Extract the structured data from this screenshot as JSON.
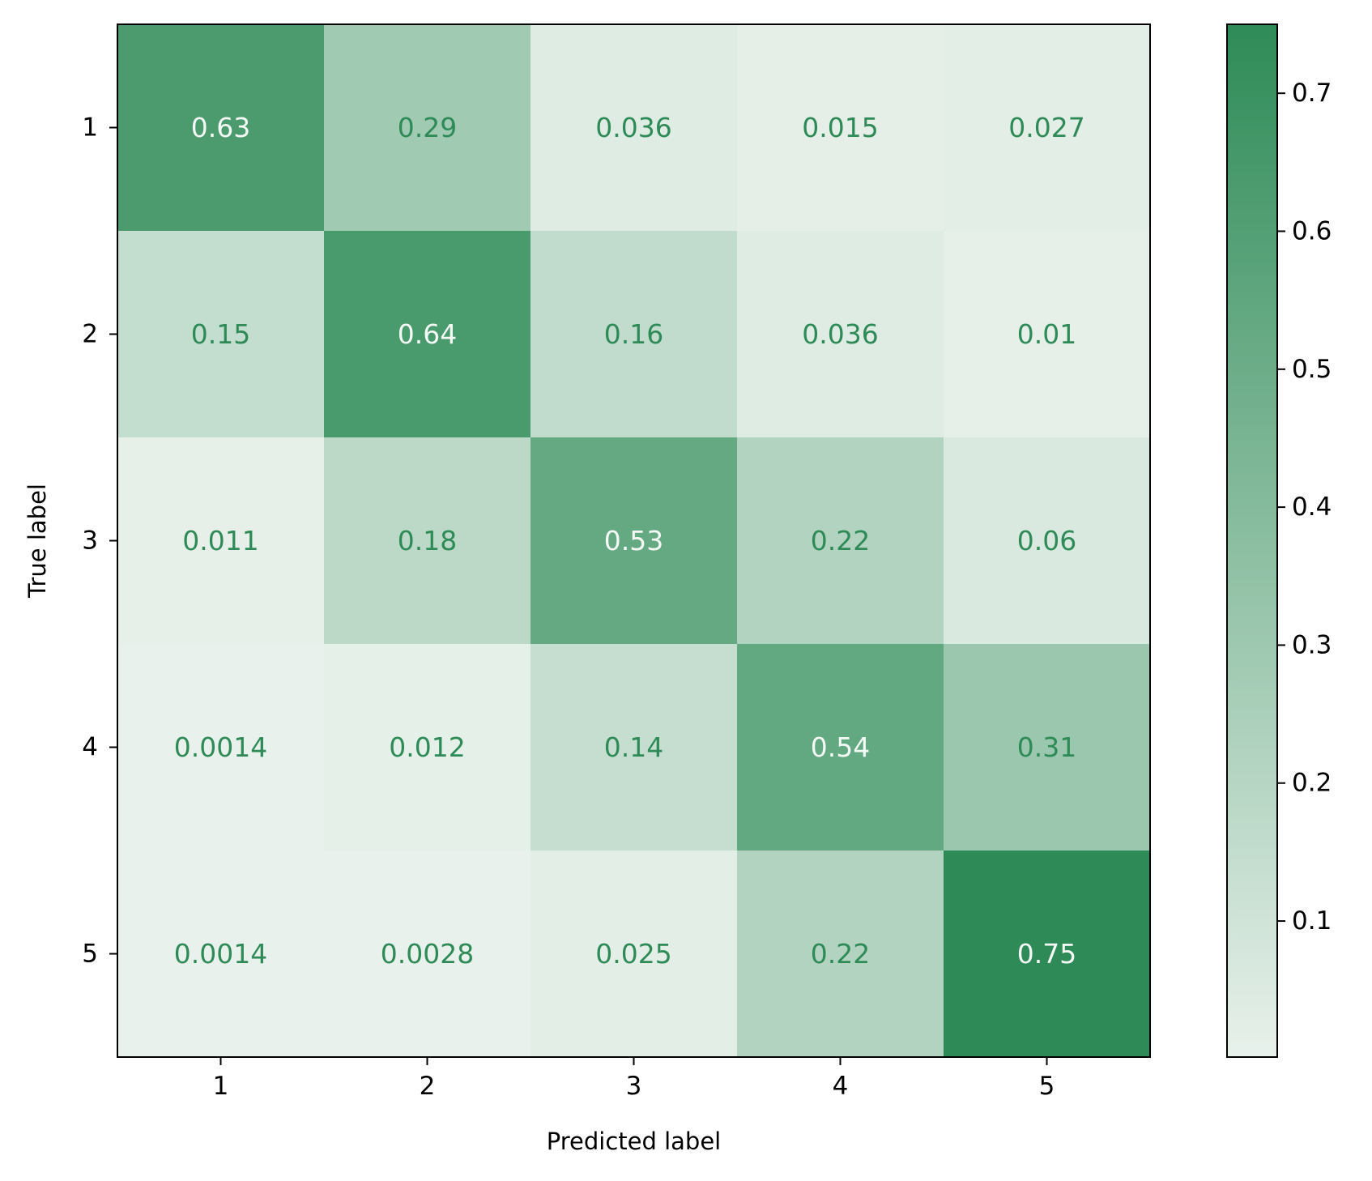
{
  "chart_data": {
    "type": "heatmap",
    "title": "",
    "xlabel": "Predicted label",
    "ylabel": "True label",
    "x_categories": [
      "1",
      "2",
      "3",
      "4",
      "5"
    ],
    "y_categories": [
      "1",
      "2",
      "3",
      "4",
      "5"
    ],
    "values": [
      [
        0.63,
        0.29,
        0.036,
        0.015,
        0.027
      ],
      [
        0.15,
        0.64,
        0.16,
        0.036,
        0.01
      ],
      [
        0.011,
        0.18,
        0.53,
        0.22,
        0.06
      ],
      [
        0.0014,
        0.012,
        0.14,
        0.54,
        0.31
      ],
      [
        0.0014,
        0.0028,
        0.025,
        0.22,
        0.75
      ]
    ],
    "cell_labels": [
      [
        "0.63",
        "0.29",
        "0.036",
        "0.015",
        "0.027"
      ],
      [
        "0.15",
        "0.64",
        "0.16",
        "0.036",
        "0.01"
      ],
      [
        "0.011",
        "0.18",
        "0.53",
        "0.22",
        "0.06"
      ],
      [
        "0.0014",
        "0.012",
        "0.14",
        "0.54",
        "0.31"
      ],
      [
        "0.0014",
        "0.0028",
        "0.025",
        "0.22",
        "0.75"
      ]
    ],
    "colorbar": {
      "range": [
        0.0014,
        0.75
      ],
      "ticks": [
        0.1,
        0.2,
        0.3,
        0.4,
        0.5,
        0.6,
        0.7
      ],
      "tick_labels": [
        "0.1",
        "0.2",
        "0.3",
        "0.4",
        "0.5",
        "0.6",
        "0.7"
      ]
    },
    "colormap": {
      "low_color": "#e8f1eb",
      "high_color": "#2e8b57",
      "light_text_color": "#f4f9f6",
      "dark_text_color": "#2e8b57"
    }
  }
}
